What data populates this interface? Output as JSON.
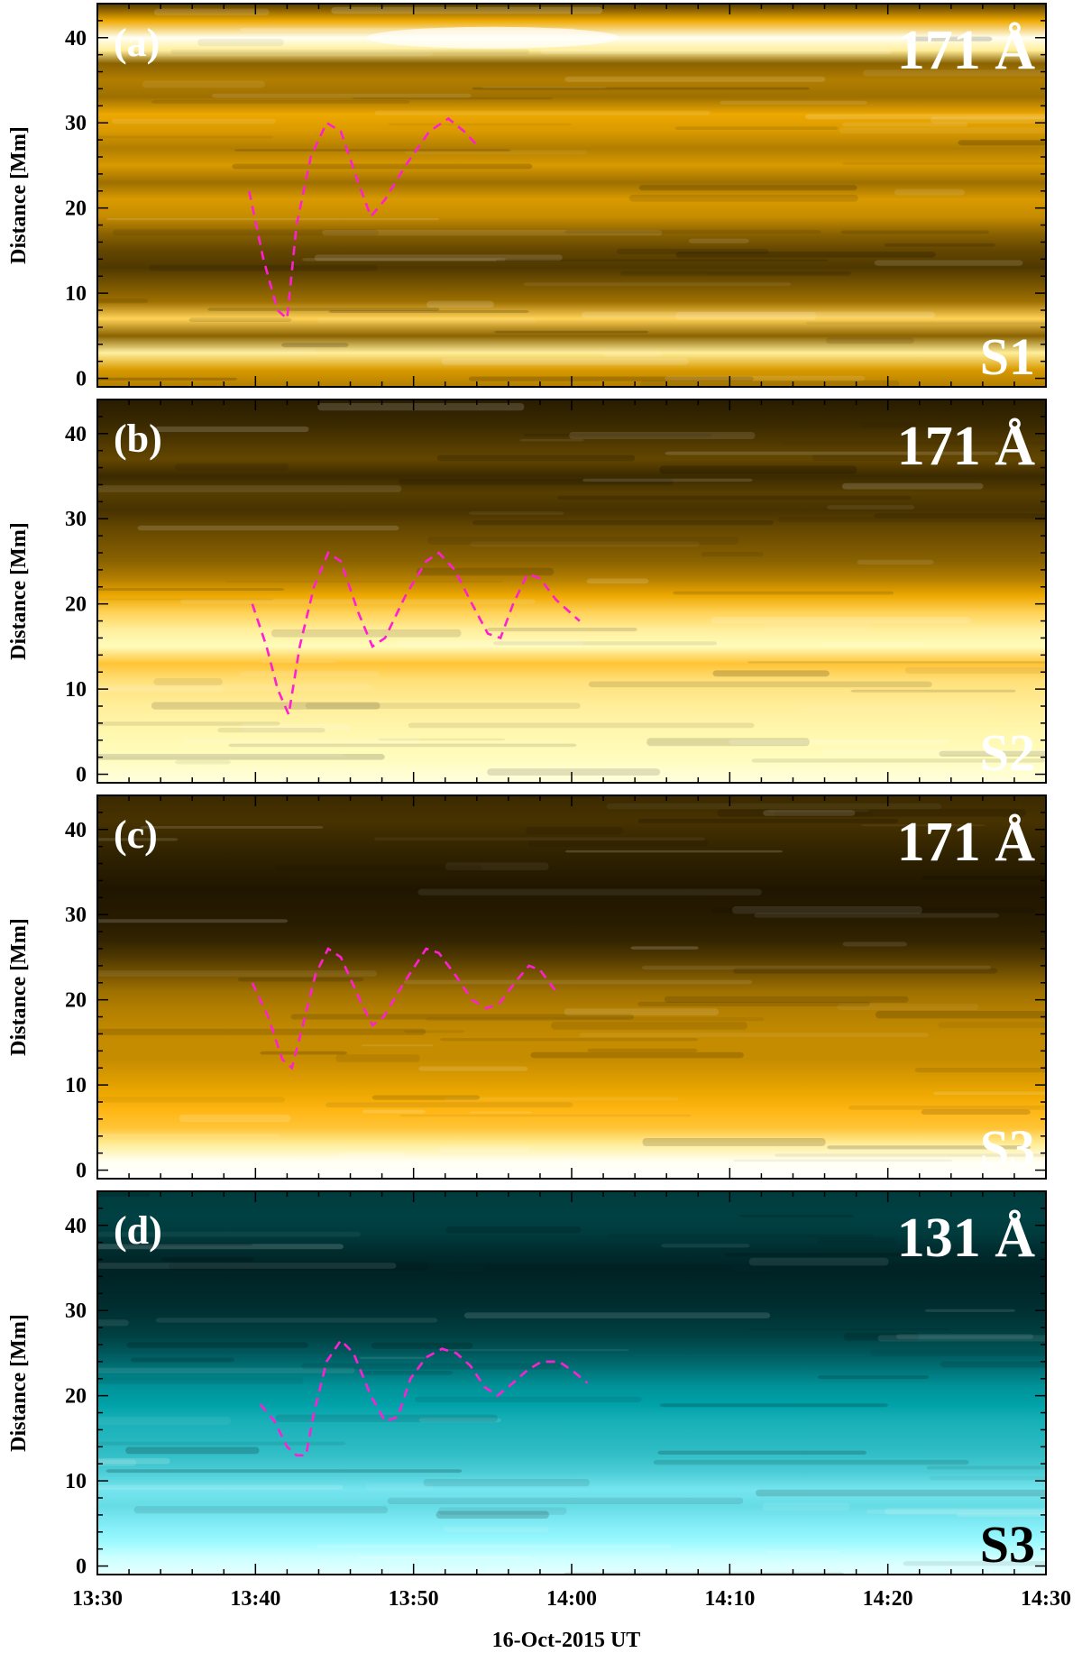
{
  "chart_data": {
    "type": "heatmap",
    "description_type": "time-distance maps",
    "xlabel": "16-Oct-2015  UT",
    "ylabel": "Distance [Mm]",
    "xlim": [
      "13:30",
      "14:30"
    ],
    "ylim": [
      -1,
      44
    ],
    "x_ticks": [
      "13:30",
      "13:40",
      "13:50",
      "14:00",
      "14:10",
      "14:20",
      "14:30"
    ],
    "y_ticks": [
      0,
      10,
      20,
      30,
      40
    ],
    "track_color": "#ff1fd2",
    "panels": [
      {
        "letter": "(a)",
        "wavelength": "171 Å",
        "slit": "S1",
        "colormap": "sdo-171",
        "slit_color": "#ffffff",
        "track": [
          [
            9.6,
            22
          ],
          [
            10.5,
            14
          ],
          [
            11.4,
            8
          ],
          [
            12.0,
            7
          ],
          [
            12.6,
            18
          ],
          [
            13.5,
            26
          ],
          [
            14.5,
            30
          ],
          [
            15.4,
            29
          ],
          [
            16.5,
            23
          ],
          [
            17.3,
            19
          ],
          [
            18.2,
            21
          ],
          [
            19.5,
            25
          ],
          [
            21.0,
            29
          ],
          [
            22.2,
            30.5
          ],
          [
            23.2,
            29
          ],
          [
            24.2,
            27
          ]
        ]
      },
      {
        "letter": "(b)",
        "wavelength": "171 Å",
        "slit": "S2",
        "colormap": "sdo-171",
        "slit_color": "#ffffff",
        "track": [
          [
            9.8,
            20
          ],
          [
            10.7,
            15
          ],
          [
            11.4,
            10
          ],
          [
            12.1,
            7
          ],
          [
            12.8,
            15
          ],
          [
            13.7,
            22
          ],
          [
            14.6,
            26
          ],
          [
            15.4,
            25
          ],
          [
            16.5,
            19
          ],
          [
            17.4,
            15
          ],
          [
            18.2,
            16
          ],
          [
            19.5,
            21
          ],
          [
            20.8,
            25
          ],
          [
            21.6,
            26
          ],
          [
            22.6,
            24
          ],
          [
            23.7,
            20
          ],
          [
            24.7,
            16.5
          ],
          [
            25.5,
            16
          ],
          [
            26.3,
            20
          ],
          [
            27.2,
            23.5
          ],
          [
            28.0,
            23
          ],
          [
            29.0,
            20.5
          ],
          [
            30.5,
            18
          ]
        ]
      },
      {
        "letter": "(c)",
        "wavelength": "171 Å",
        "slit": "S3",
        "colormap": "sdo-171",
        "slit_color": "#ffffff",
        "track": [
          [
            9.8,
            22
          ],
          [
            10.8,
            18
          ],
          [
            11.7,
            13
          ],
          [
            12.3,
            12
          ],
          [
            13.0,
            17
          ],
          [
            13.8,
            23
          ],
          [
            14.6,
            26
          ],
          [
            15.4,
            25
          ],
          [
            16.6,
            20
          ],
          [
            17.4,
            17
          ],
          [
            18.1,
            18
          ],
          [
            19.4,
            22
          ],
          [
            20.8,
            26
          ],
          [
            21.6,
            25.5
          ],
          [
            22.6,
            23
          ],
          [
            23.7,
            20
          ],
          [
            24.6,
            19
          ],
          [
            25.4,
            19.5
          ],
          [
            26.4,
            22
          ],
          [
            27.3,
            24
          ],
          [
            28.0,
            23.5
          ],
          [
            29.0,
            21
          ]
        ]
      },
      {
        "letter": "(d)",
        "wavelength": "131 Å",
        "slit": "S3",
        "colormap": "sdo-131",
        "slit_color": "#000000",
        "track": [
          [
            10.3,
            19
          ],
          [
            11.2,
            17
          ],
          [
            12.0,
            14
          ],
          [
            12.6,
            13
          ],
          [
            13.2,
            13
          ],
          [
            13.7,
            18
          ],
          [
            14.5,
            24
          ],
          [
            15.4,
            26.5
          ],
          [
            16.2,
            25
          ],
          [
            17.3,
            20
          ],
          [
            18.2,
            17
          ],
          [
            19.0,
            17.5
          ],
          [
            19.8,
            22
          ],
          [
            20.8,
            24.5
          ],
          [
            21.8,
            25.5
          ],
          [
            22.7,
            25
          ],
          [
            23.6,
            23.5
          ],
          [
            24.5,
            21
          ],
          [
            25.3,
            20
          ],
          [
            26.3,
            21.5
          ],
          [
            27.2,
            23
          ],
          [
            28.1,
            24
          ],
          [
            29.2,
            24
          ],
          [
            30.0,
            23
          ],
          [
            31.0,
            21.5
          ]
        ]
      }
    ]
  }
}
